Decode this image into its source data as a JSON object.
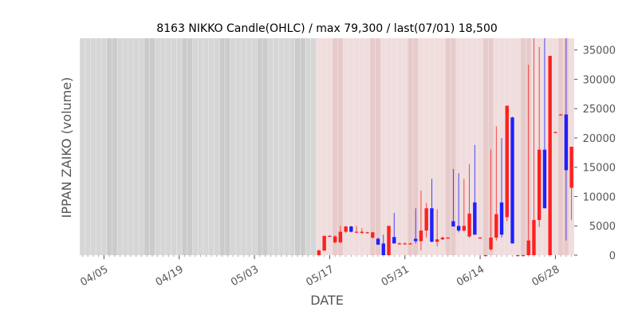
{
  "chart_data": {
    "type": "candlestick",
    "title": "8163 NIKKO Candle(OHLC) / max 79,300 / last(07/01) 18,500",
    "xlabel": "DATE",
    "ylabel": "IPPAN ZAIKO (volume)",
    "ylim": [
      0,
      37000
    ],
    "y_ticks": [
      0,
      5000,
      10000,
      15000,
      20000,
      25000,
      30000,
      35000
    ],
    "y_tick_labels": [
      "0",
      "5000",
      "10000",
      "15000",
      "20000",
      "25000",
      "30000",
      "35000"
    ],
    "y_axis_side": "right",
    "x_tick_labels": [
      "04/05",
      "04/19",
      "05/03",
      "05/17",
      "05/31",
      "06/14",
      "06/28"
    ],
    "colors": {
      "up": "#ff2020",
      "down": "#2020ff",
      "weekend_band": "#c8c8c8",
      "past_band": "#d4d4d4",
      "recent_band": "#f2dcdc",
      "recent_band_alt": "#e8c6c6",
      "plot_bg": "#ebebeb"
    },
    "candles": [
      {
        "date": "05/15",
        "o": 0,
        "h": 1000,
        "l": 0,
        "c": 800,
        "dir": "up"
      },
      {
        "date": "05/16",
        "o": 800,
        "h": 3300,
        "l": 700,
        "c": 3300,
        "dir": "up"
      },
      {
        "date": "05/17",
        "o": 3300,
        "h": 3400,
        "l": 3100,
        "c": 3200,
        "dir": "flat"
      },
      {
        "date": "05/18",
        "o": 3200,
        "h": 3400,
        "l": 2000,
        "c": 2200,
        "dir": "flat"
      },
      {
        "date": "05/19",
        "o": 2200,
        "h": 5000,
        "l": 2000,
        "c": 4000,
        "dir": "up"
      },
      {
        "date": "05/20",
        "o": 4000,
        "h": 5000,
        "l": 3800,
        "c": 4900,
        "dir": "up"
      },
      {
        "date": "05/21",
        "o": 4900,
        "h": 5000,
        "l": 3900,
        "c": 4000,
        "dir": "down"
      },
      {
        "date": "05/22",
        "o": 4000,
        "h": 5000,
        "l": 3800,
        "c": 4000,
        "dir": "flat"
      },
      {
        "date": "05/23",
        "o": 4000,
        "h": 4600,
        "l": 3600,
        "c": 3800,
        "dir": "up"
      },
      {
        "date": "05/24",
        "o": 3800,
        "h": 4000,
        "l": 3700,
        "c": 3900,
        "dir": "flat"
      },
      {
        "date": "05/25",
        "o": 3900,
        "h": 4000,
        "l": 2800,
        "c": 3000,
        "dir": "flat"
      },
      {
        "date": "05/26",
        "o": 2800,
        "h": 3000,
        "l": 1800,
        "c": 1800,
        "dir": "down"
      },
      {
        "date": "05/27",
        "o": 2000,
        "h": 3500,
        "l": 0,
        "c": 0,
        "dir": "down"
      },
      {
        "date": "05/28",
        "o": 0,
        "h": 5000,
        "l": 0,
        "c": 5000,
        "dir": "up"
      },
      {
        "date": "05/29",
        "o": 3100,
        "h": 7200,
        "l": 2200,
        "c": 2000,
        "dir": "down"
      },
      {
        "date": "05/30",
        "o": 2000,
        "h": 2200,
        "l": 1800,
        "c": 2000,
        "dir": "flat"
      },
      {
        "date": "05/31",
        "o": 2000,
        "h": 2200,
        "l": 1900,
        "c": 2000,
        "dir": "flat"
      },
      {
        "date": "06/01",
        "o": 2000,
        "h": 2100,
        "l": 1900,
        "c": 2000,
        "dir": "flat"
      },
      {
        "date": "06/02",
        "o": 2800,
        "h": 8000,
        "l": 2000,
        "c": 2400,
        "dir": "down"
      },
      {
        "date": "06/03",
        "o": 2400,
        "h": 11000,
        "l": 800,
        "c": 4200,
        "dir": "up"
      },
      {
        "date": "06/04",
        "o": 4200,
        "h": 8900,
        "l": 3000,
        "c": 8000,
        "dir": "up"
      },
      {
        "date": "06/05",
        "o": 8000,
        "h": 13000,
        "l": 2200,
        "c": 2300,
        "dir": "down"
      },
      {
        "date": "06/06",
        "o": 2300,
        "h": 7800,
        "l": 1500,
        "c": 2700,
        "dir": "up"
      },
      {
        "date": "06/07",
        "o": 2700,
        "h": 3200,
        "l": 2600,
        "c": 3000,
        "dir": "flat"
      },
      {
        "date": "06/08",
        "o": 3000,
        "h": 3100,
        "l": 2900,
        "c": 3000,
        "dir": "flat"
      },
      {
        "date": "06/09",
        "o": 5800,
        "h": 14700,
        "l": 4900,
        "c": 4900,
        "dir": "down"
      },
      {
        "date": "06/10",
        "o": 5000,
        "h": 14000,
        "l": 3900,
        "c": 4200,
        "dir": "down"
      },
      {
        "date": "06/11",
        "o": 4200,
        "h": 13000,
        "l": 4000,
        "c": 5000,
        "dir": "up"
      },
      {
        "date": "06/12",
        "o": 3200,
        "h": 15500,
        "l": 3000,
        "c": 7100,
        "dir": "up"
      },
      {
        "date": "06/13",
        "o": 9000,
        "h": 18800,
        "l": 3500,
        "c": 3500,
        "dir": "down"
      },
      {
        "date": "06/14",
        "o": 3000,
        "h": 3100,
        "l": 2900,
        "c": 3000,
        "dir": "flat"
      },
      {
        "date": "06/15",
        "o": 0,
        "h": 100,
        "l": 0,
        "c": 0,
        "dir": "flat"
      },
      {
        "date": "06/16",
        "o": 1000,
        "h": 18000,
        "l": 800,
        "c": 3000,
        "dir": "up"
      },
      {
        "date": "06/17",
        "o": 3000,
        "h": 22000,
        "l": 2500,
        "c": 7000,
        "dir": "up"
      },
      {
        "date": "06/18",
        "o": 9000,
        "h": 20000,
        "l": 3000,
        "c": 3500,
        "dir": "down"
      },
      {
        "date": "06/19",
        "o": 6500,
        "h": 25500,
        "l": 5800,
        "c": 25500,
        "dir": "up"
      },
      {
        "date": "06/20",
        "o": 23500,
        "h": 23600,
        "l": 2000,
        "c": 2000,
        "dir": "down"
      },
      {
        "date": "06/21",
        "o": 0,
        "h": 100,
        "l": 0,
        "c": 0,
        "dir": "flat"
      },
      {
        "date": "06/22",
        "o": 0,
        "h": 100,
        "l": 0,
        "c": 0,
        "dir": "flat"
      },
      {
        "date": "06/23",
        "o": 0,
        "h": 32500,
        "l": 0,
        "c": 2500,
        "dir": "up"
      },
      {
        "date": "06/24",
        "o": 0,
        "h": 37000,
        "l": 0,
        "c": 6000,
        "dir": "up"
      },
      {
        "date": "06/25",
        "o": 6000,
        "h": 35500,
        "l": 4800,
        "c": 18000,
        "dir": "up"
      },
      {
        "date": "06/26",
        "o": 18000,
        "h": 37000,
        "l": 8000,
        "c": 8000,
        "dir": "down"
      },
      {
        "date": "06/27",
        "o": 0,
        "h": 34000,
        "l": 0,
        "c": 34000,
        "dir": "up"
      },
      {
        "date": "06/28",
        "o": 21000,
        "h": 21100,
        "l": 20900,
        "c": 21000,
        "dir": "flat"
      },
      {
        "date": "06/29",
        "o": 24000,
        "h": 24100,
        "l": 23900,
        "c": 24000,
        "dir": "flat"
      },
      {
        "date": "06/30",
        "o": 24000,
        "h": 37000,
        "l": 2500,
        "c": 14500,
        "dir": "down"
      },
      {
        "date": "07/01",
        "o": 11500,
        "h": 18500,
        "l": 6000,
        "c": 18500,
        "dir": "up"
      }
    ]
  }
}
